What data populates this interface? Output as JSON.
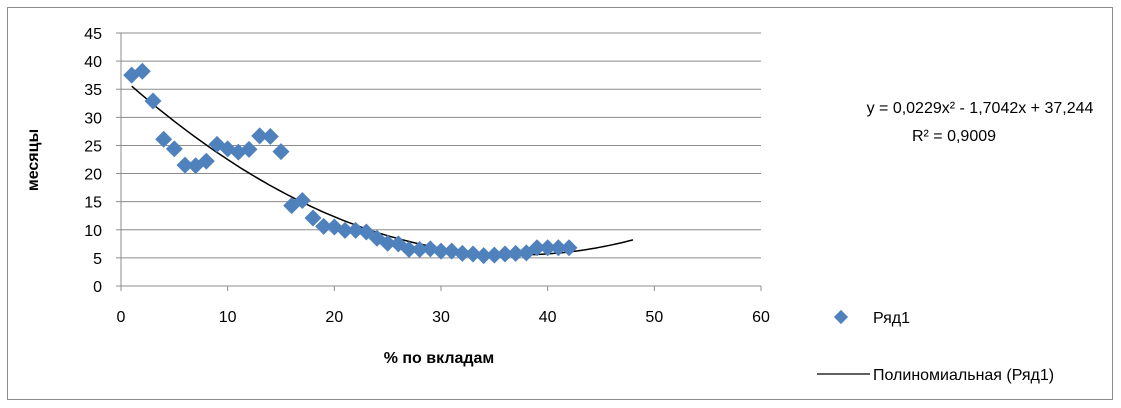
{
  "chart_data": {
    "type": "scatter",
    "title": "",
    "xlabel": "% по вкладам",
    "ylabel": "месяцы",
    "xlim": [
      0,
      60
    ],
    "ylim": [
      0,
      45
    ],
    "xticks": [
      "0",
      "10",
      "20",
      "30",
      "40",
      "50",
      "60"
    ],
    "yticks": [
      "0",
      "5",
      "10",
      "15",
      "20",
      "25",
      "30",
      "35",
      "40",
      "45"
    ],
    "grid": "horizontal",
    "legend_placement": "right",
    "marker_color": "#4F81BD",
    "trend_color": "#000000",
    "series": [
      {
        "name": "Ряд1",
        "x": [
          1,
          2,
          3,
          4,
          5,
          6,
          7,
          8,
          9,
          10,
          11,
          12,
          13,
          14,
          15,
          16,
          17,
          18,
          19,
          20,
          21,
          22,
          23,
          24,
          25,
          26,
          27,
          28,
          29,
          30,
          31,
          32,
          33,
          34,
          35,
          36,
          37,
          38,
          39,
          40,
          41,
          42
        ],
        "y": [
          37.5,
          38.2,
          32.9,
          26.1,
          24.4,
          21.5,
          21.4,
          22.2,
          25.2,
          24.4,
          23.8,
          24.3,
          26.7,
          26.6,
          23.9,
          14.3,
          15.2,
          12.1,
          10.6,
          10.5,
          9.9,
          9.9,
          9.6,
          8.5,
          7.6,
          7.5,
          6.5,
          6.5,
          6.6,
          6.2,
          6.2,
          5.8,
          5.7,
          5.4,
          5.5,
          5.7,
          5.8,
          5.9,
          6.8,
          6.8,
          6.8,
          6.8
        ]
      }
    ],
    "trendline": {
      "name": "Полиномиальная (Ряд1)",
      "type": "polynomial",
      "coefficients": [
        0.0229,
        -1.7042,
        37.244
      ],
      "x_range": [
        1,
        48
      ],
      "equation": "y = 0,0229x² - 1,7042x + 37,244",
      "r_squared": "R² = 0,9009"
    }
  }
}
